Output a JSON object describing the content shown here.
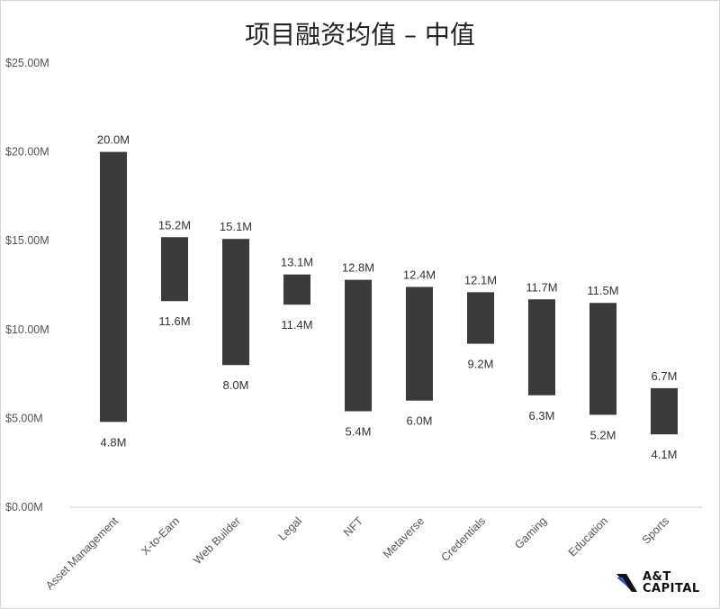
{
  "chart_data": {
    "type": "bar",
    "subtype": "floating-range",
    "title": "项目融资均值 – 中值",
    "xlabel": "",
    "ylabel": "",
    "ylim": [
      0,
      25
    ],
    "yticks": [
      "$0.00M",
      "$5.00M",
      "$10.00M",
      "$15.00M",
      "$20.00M",
      "$25.00M"
    ],
    "categories": [
      "Asset Management",
      "X-to-Earn",
      "Web Builder",
      "Legal",
      "NFT",
      "Metaverse",
      "Credentials",
      "Gaming",
      "Education",
      "Sports"
    ],
    "high": [
      20.0,
      15.2,
      15.1,
      13.1,
      12.8,
      12.4,
      12.1,
      11.7,
      11.5,
      6.7
    ],
    "low": [
      4.8,
      11.6,
      8.0,
      11.4,
      5.4,
      6.0,
      9.2,
      6.3,
      5.2,
      4.1
    ],
    "high_labels": [
      "20.0M",
      "15.2M",
      "15.1M",
      "13.1M",
      "12.8M",
      "12.4M",
      "12.1M",
      "11.7M",
      "11.5M",
      "6.7M"
    ],
    "low_labels": [
      "4.8M",
      "11.6M",
      "8.0M",
      "11.4M",
      "5.4M",
      "6.0M",
      "9.2M",
      "6.3M",
      "5.2M",
      "4.1M"
    ],
    "grid": false,
    "legend": "none",
    "bar_color": "#3a3a3a"
  },
  "logo": {
    "line1": "A&T",
    "line2": "CAPITAL"
  }
}
